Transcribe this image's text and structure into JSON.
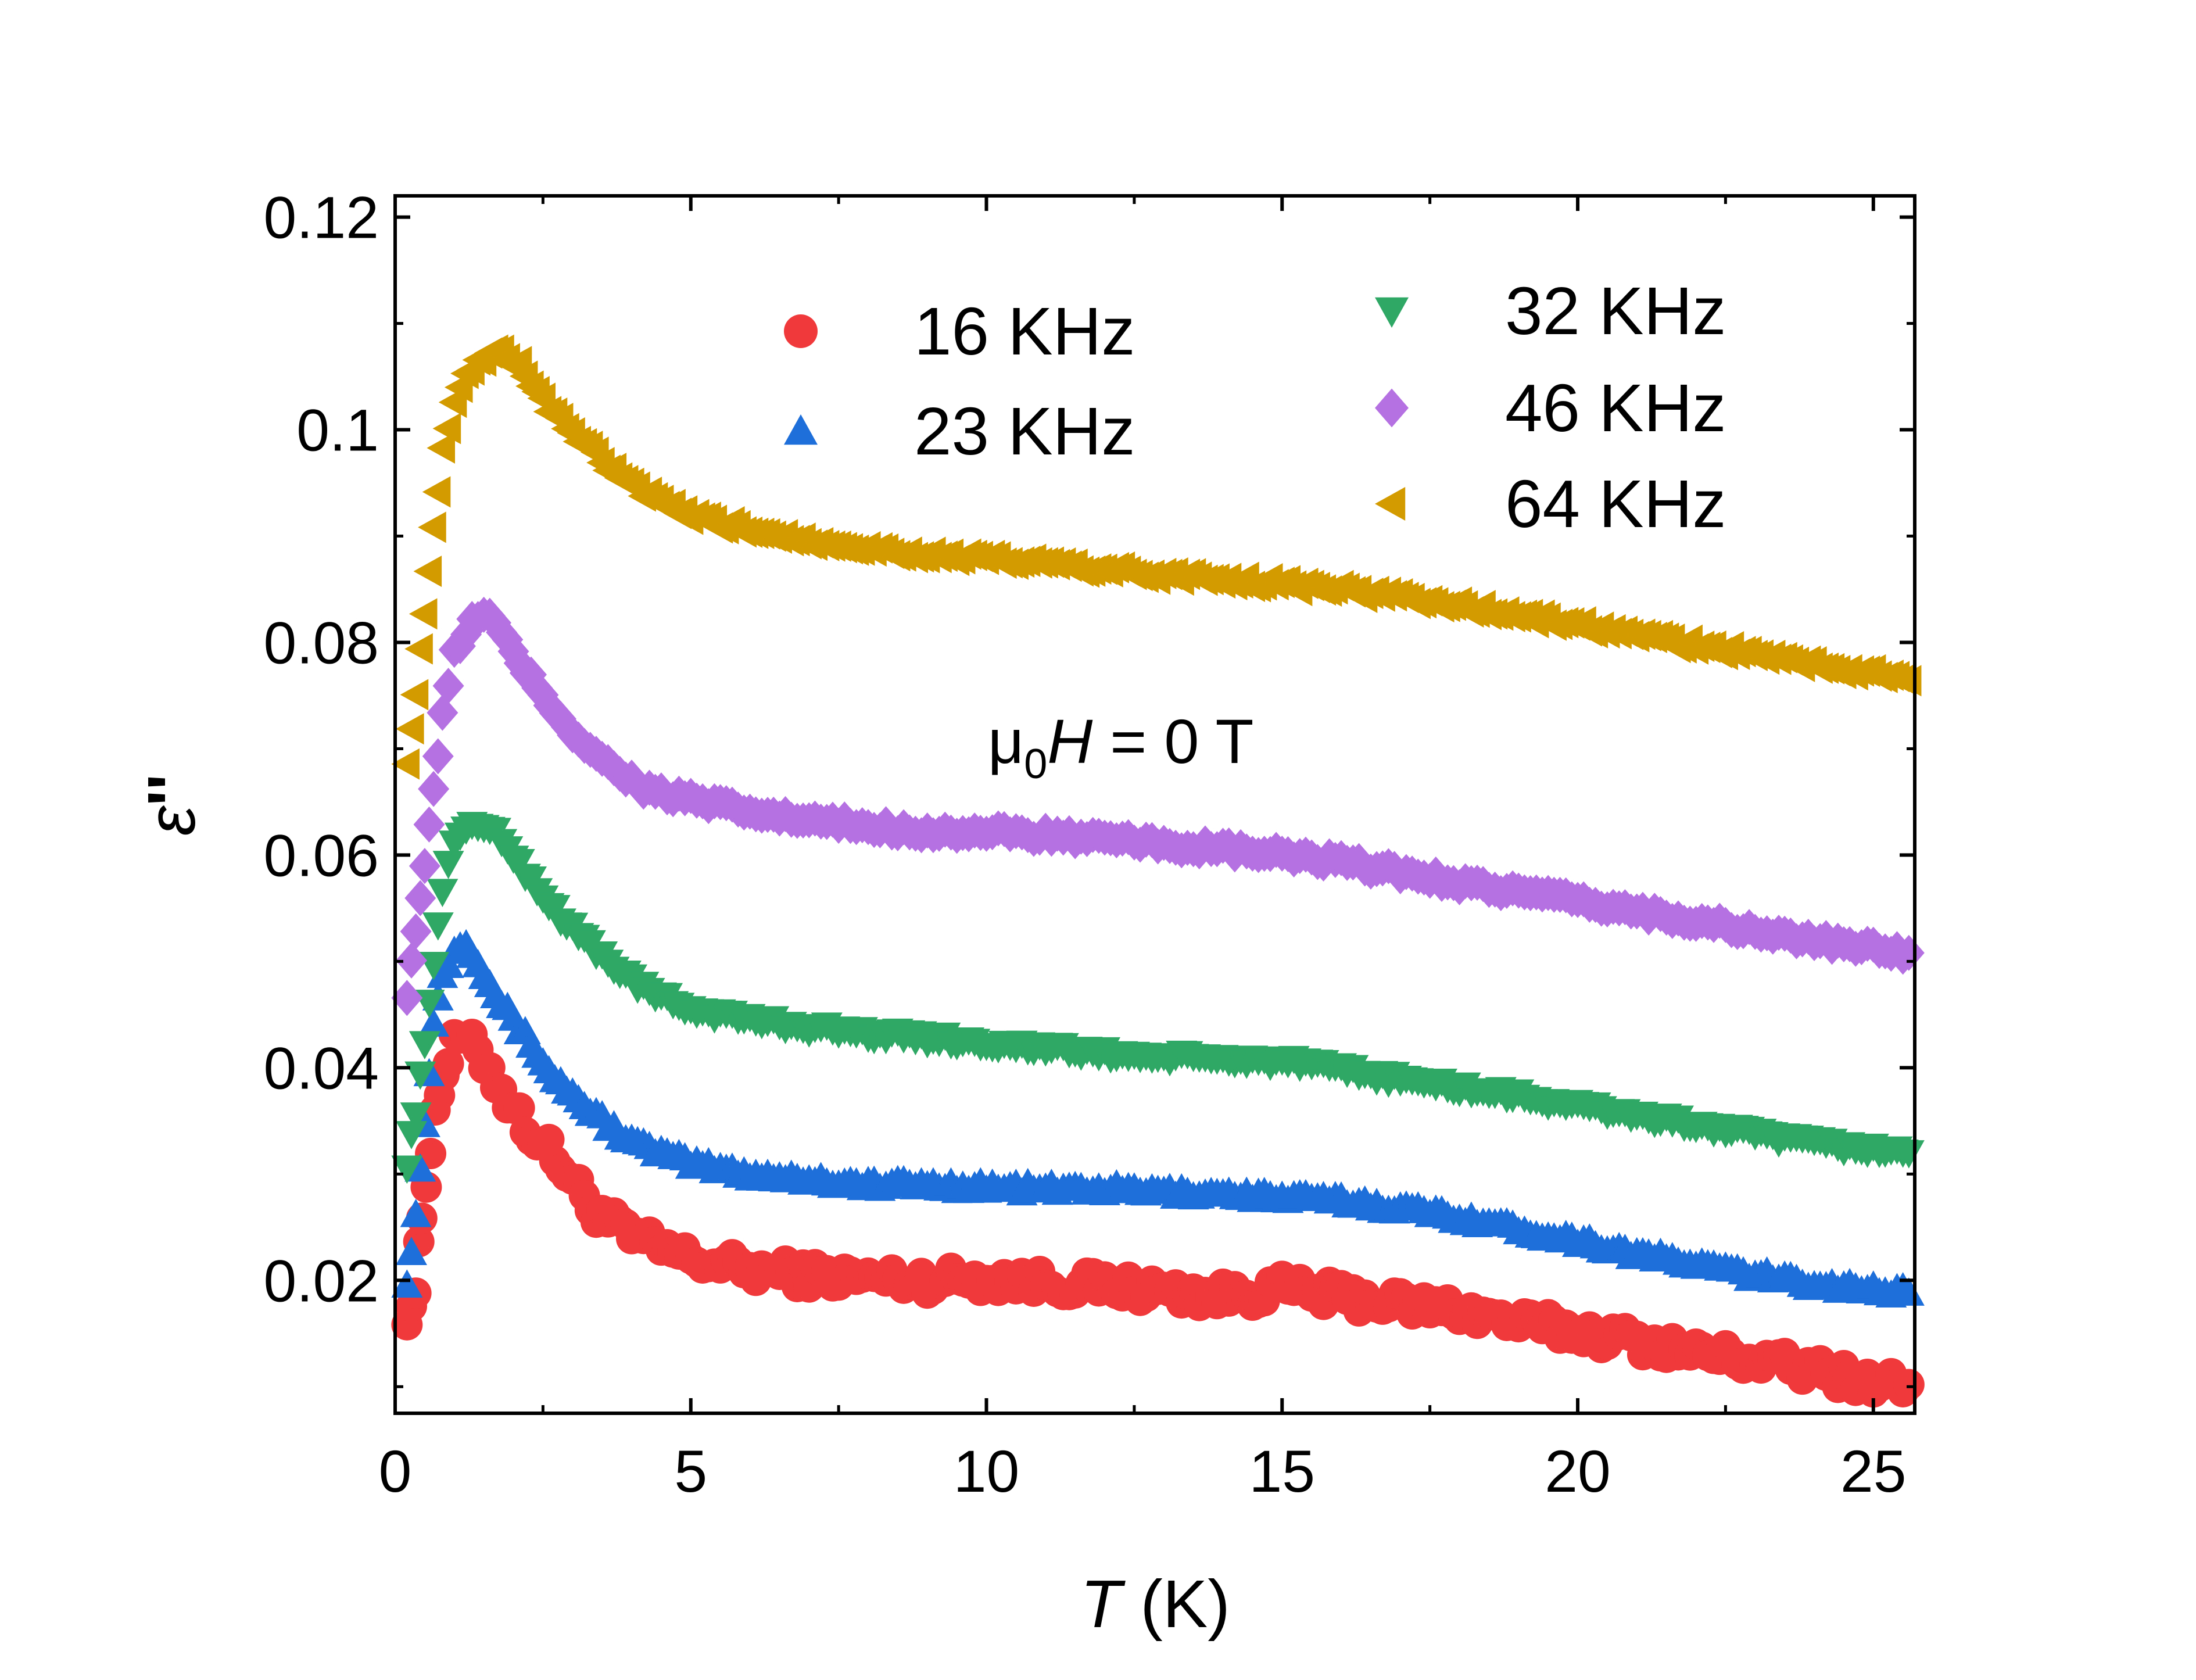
{
  "chart_data": {
    "type": "scatter",
    "title": "",
    "xlabel": {
      "symbol": "T",
      "unit": " (K)"
    },
    "ylabel": {
      "symbol": "ε",
      "prime": "''"
    },
    "xlim": [
      0,
      25.7
    ],
    "ylim": [
      0.0075,
      0.122
    ],
    "x_ticks": [
      0,
      5,
      10,
      15,
      20,
      25
    ],
    "y_ticks": [
      0.02,
      0.04,
      0.06,
      0.08,
      0.1,
      0.12
    ],
    "y_tick_labels": [
      "0.02",
      "0.04",
      "0.06",
      "0.08",
      "0.1",
      "0.12"
    ],
    "grid": false,
    "annotation": {
      "mu": "μ",
      "sub": "0",
      "symbol": "H",
      "rest": " = 0 T"
    },
    "series": [
      {
        "name": "16 KHz",
        "marker": "circle",
        "color": "#f0393b",
        "points": [
          [
            0.2,
            0.017
          ],
          [
            0.35,
            0.019
          ],
          [
            0.45,
            0.026
          ],
          [
            0.6,
            0.033
          ],
          [
            0.75,
            0.038
          ],
          [
            0.9,
            0.041
          ],
          [
            1.1,
            0.043
          ],
          [
            1.3,
            0.042
          ],
          [
            1.6,
            0.04
          ],
          [
            1.9,
            0.037
          ],
          [
            2.3,
            0.034
          ],
          [
            2.8,
            0.031
          ],
          [
            3.3,
            0.027
          ],
          [
            4.0,
            0.024
          ],
          [
            5.0,
            0.022
          ],
          [
            6.0,
            0.021
          ],
          [
            7.0,
            0.0205
          ],
          [
            8.0,
            0.0202
          ],
          [
            9.0,
            0.02
          ],
          [
            10.0,
            0.0202
          ],
          [
            11.0,
            0.0198
          ],
          [
            12.0,
            0.0195
          ],
          [
            13.0,
            0.019
          ],
          [
            14.0,
            0.0185
          ],
          [
            15.0,
            0.0192
          ],
          [
            16.0,
            0.0185
          ],
          [
            17.0,
            0.0178
          ],
          [
            18.0,
            0.0172
          ],
          [
            19.0,
            0.016
          ],
          [
            20.0,
            0.0152
          ],
          [
            21.0,
            0.0143
          ],
          [
            22.0,
            0.0132
          ],
          [
            23.0,
            0.0125
          ],
          [
            24.0,
            0.0115
          ],
          [
            25.0,
            0.0105
          ],
          [
            25.6,
            0.0102
          ]
        ]
      },
      {
        "name": "23 KHz",
        "marker": "triangle-up",
        "color": "#1e6fd9",
        "points": [
          [
            0.2,
            0.02
          ],
          [
            0.35,
            0.026
          ],
          [
            0.5,
            0.035
          ],
          [
            0.65,
            0.044
          ],
          [
            0.8,
            0.049
          ],
          [
            1.0,
            0.051
          ],
          [
            1.2,
            0.052
          ],
          [
            1.5,
            0.049
          ],
          [
            1.8,
            0.046
          ],
          [
            2.2,
            0.043
          ],
          [
            2.7,
            0.039
          ],
          [
            3.3,
            0.036
          ],
          [
            4.0,
            0.033
          ],
          [
            5.0,
            0.031
          ],
          [
            6.0,
            0.03
          ],
          [
            7.0,
            0.0295
          ],
          [
            8.0,
            0.029
          ],
          [
            9.0,
            0.029
          ],
          [
            10.0,
            0.0288
          ],
          [
            11.0,
            0.0286
          ],
          [
            12.0,
            0.0286
          ],
          [
            13.0,
            0.0283
          ],
          [
            14.0,
            0.0282
          ],
          [
            15.0,
            0.0278
          ],
          [
            16.0,
            0.0275
          ],
          [
            17.0,
            0.0268
          ],
          [
            18.0,
            0.026
          ],
          [
            19.0,
            0.0248
          ],
          [
            20.0,
            0.0238
          ],
          [
            21.0,
            0.0225
          ],
          [
            22.0,
            0.0215
          ],
          [
            23.0,
            0.0205
          ],
          [
            24.0,
            0.0197
          ],
          [
            25.0,
            0.0192
          ],
          [
            25.6,
            0.0188
          ]
        ]
      },
      {
        "name": "32 KHz",
        "marker": "triangle-down",
        "color": "#2fa866",
        "points": [
          [
            0.2,
            0.031
          ],
          [
            0.35,
            0.036
          ],
          [
            0.5,
            0.042
          ],
          [
            0.65,
            0.05
          ],
          [
            0.8,
            0.057
          ],
          [
            1.0,
            0.061
          ],
          [
            1.3,
            0.063
          ],
          [
            1.6,
            0.0625
          ],
          [
            2.0,
            0.06
          ],
          [
            2.5,
            0.056
          ],
          [
            3.0,
            0.053
          ],
          [
            3.6,
            0.05
          ],
          [
            4.3,
            0.047
          ],
          [
            5.0,
            0.0455
          ],
          [
            6.0,
            0.0445
          ],
          [
            7.0,
            0.0438
          ],
          [
            8.0,
            0.0432
          ],
          [
            9.0,
            0.0428
          ],
          [
            10.0,
            0.0423
          ],
          [
            11.0,
            0.0418
          ],
          [
            12.0,
            0.0413
          ],
          [
            13.0,
            0.041
          ],
          [
            14.0,
            0.0408
          ],
          [
            15.0,
            0.0406
          ],
          [
            16.0,
            0.0398
          ],
          [
            17.0,
            0.0389
          ],
          [
            18.0,
            0.0381
          ],
          [
            19.0,
            0.0373
          ],
          [
            20.0,
            0.0364
          ],
          [
            21.0,
            0.0355
          ],
          [
            22.0,
            0.0346
          ],
          [
            23.0,
            0.0337
          ],
          [
            24.0,
            0.0329
          ],
          [
            25.0,
            0.0323
          ],
          [
            25.6,
            0.032
          ]
        ]
      },
      {
        "name": "46 KHz",
        "marker": "diamond",
        "color": "#b571e1",
        "points": [
          [
            0.2,
            0.047
          ],
          [
            0.35,
            0.053
          ],
          [
            0.5,
            0.059
          ],
          [
            0.65,
            0.066
          ],
          [
            0.8,
            0.073
          ],
          [
            1.0,
            0.079
          ],
          [
            1.3,
            0.082
          ],
          [
            1.6,
            0.0825
          ],
          [
            2.0,
            0.079
          ],
          [
            2.5,
            0.075
          ],
          [
            3.0,
            0.0715
          ],
          [
            3.6,
            0.0685
          ],
          [
            4.3,
            0.066
          ],
          [
            5.0,
            0.0652
          ],
          [
            6.0,
            0.064
          ],
          [
            7.0,
            0.0632
          ],
          [
            8.0,
            0.0627
          ],
          [
            9.0,
            0.0622
          ],
          [
            10.0,
            0.0621
          ],
          [
            11.0,
            0.0619
          ],
          [
            12.0,
            0.0614
          ],
          [
            13.0,
            0.061
          ],
          [
            14.0,
            0.0605
          ],
          [
            15.0,
            0.06
          ],
          [
            16.0,
            0.0593
          ],
          [
            17.0,
            0.0584
          ],
          [
            18.0,
            0.0574
          ],
          [
            19.0,
            0.0565
          ],
          [
            20.0,
            0.0556
          ],
          [
            21.0,
            0.0547
          ],
          [
            22.0,
            0.0538
          ],
          [
            23.0,
            0.0528
          ],
          [
            24.0,
            0.0519
          ],
          [
            25.0,
            0.0512
          ],
          [
            25.6,
            0.0508
          ]
        ]
      },
      {
        "name": "64 KHz",
        "marker": "triangle-left",
        "color": "#d49b00",
        "points": [
          [
            0.2,
            0.069
          ],
          [
            0.35,
            0.075
          ],
          [
            0.5,
            0.083
          ],
          [
            0.65,
            0.091
          ],
          [
            0.8,
            0.098
          ],
          [
            1.0,
            0.103
          ],
          [
            1.3,
            0.106
          ],
          [
            1.7,
            0.1075
          ],
          [
            2.1,
            0.106
          ],
          [
            2.6,
            0.102
          ],
          [
            3.2,
            0.0985
          ],
          [
            3.8,
            0.0955
          ],
          [
            4.5,
            0.093
          ],
          [
            5.0,
            0.0918
          ],
          [
            6.0,
            0.0905
          ],
          [
            7.0,
            0.0896
          ],
          [
            8.0,
            0.0888
          ],
          [
            9.0,
            0.0882
          ],
          [
            10.0,
            0.0878
          ],
          [
            11.0,
            0.0874
          ],
          [
            12.0,
            0.0868
          ],
          [
            13.0,
            0.0863
          ],
          [
            14.0,
            0.0859
          ],
          [
            15.0,
            0.0855
          ],
          [
            16.0,
            0.0849
          ],
          [
            17.0,
            0.0843
          ],
          [
            18.0,
            0.0834
          ],
          [
            19.0,
            0.0825
          ],
          [
            20.0,
            0.0816
          ],
          [
            21.0,
            0.0806
          ],
          [
            22.0,
            0.0797
          ],
          [
            23.0,
            0.0788
          ],
          [
            24.0,
            0.0779
          ],
          [
            25.0,
            0.077
          ],
          [
            25.6,
            0.0764
          ]
        ]
      }
    ]
  }
}
